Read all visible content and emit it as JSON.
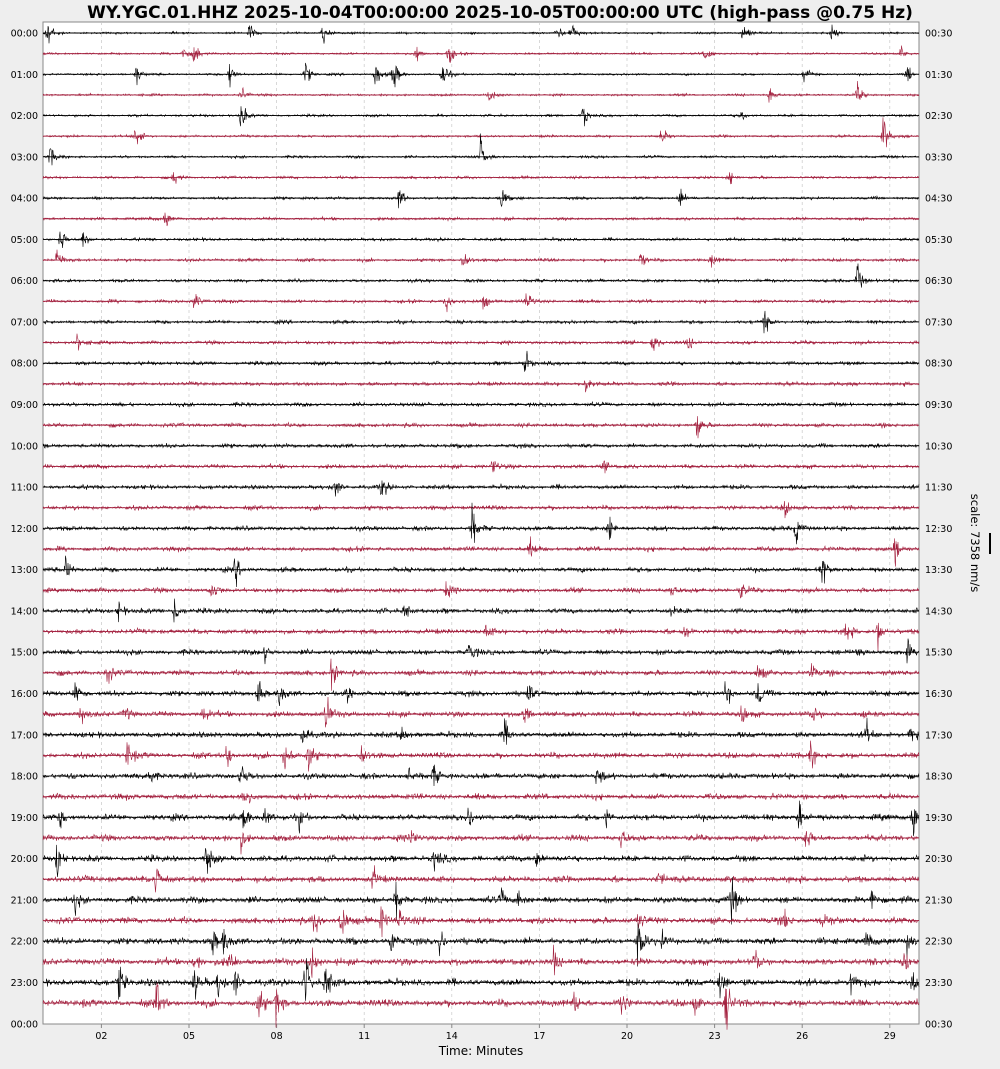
{
  "chart_data": {
    "type": "line",
    "title": "WY.YGC.01.HHZ 2025-10-04T00:00:00 2025-10-05T00:00:00 UTC (high-pass @0.75 Hz)",
    "xlabel": "Time: Minutes",
    "xlim": [
      0,
      30
    ],
    "x_ticks": [
      "02",
      "05",
      "08",
      "11",
      "14",
      "17",
      "20",
      "23",
      "26",
      "29"
    ],
    "x_tick_values": [
      2,
      5,
      8,
      11,
      14,
      17,
      20,
      23,
      26,
      29
    ],
    "left_labels": [
      "00:00",
      "01:00",
      "02:00",
      "03:00",
      "04:00",
      "05:00",
      "06:00",
      "07:00",
      "08:00",
      "09:00",
      "10:00",
      "11:00",
      "12:00",
      "13:00",
      "14:00",
      "15:00",
      "16:00",
      "17:00",
      "18:00",
      "19:00",
      "20:00",
      "21:00",
      "22:00",
      "23:00",
      "00:00"
    ],
    "right_labels": [
      "00:30",
      "01:30",
      "02:30",
      "03:30",
      "04:30",
      "05:30",
      "06:30",
      "07:30",
      "08:30",
      "09:30",
      "10:30",
      "11:30",
      "12:30",
      "13:30",
      "14:30",
      "15:30",
      "16:30",
      "17:30",
      "18:30",
      "19:30",
      "20:30",
      "21:30",
      "22:30",
      "23:30",
      "00:30"
    ],
    "scale_label": "scale: 7358 nm/s",
    "colors": {
      "even_rows": "#000000",
      "odd_rows": "#a3213f",
      "grid": "#c8c8c8"
    },
    "rows_events_minutes": [
      [
        [
          0.15,
          1.0
        ],
        [
          7.1,
          0.5
        ],
        [
          9.6,
          0.6
        ],
        [
          17.6,
          0.5
        ],
        [
          18.1,
          0.6
        ],
        [
          24,
          0.6
        ],
        [
          27,
          0.4
        ]
      ],
      [
        [
          4.8,
          0.4
        ],
        [
          5.2,
          0.6
        ],
        [
          12.8,
          0.4
        ],
        [
          13.9,
          0.6
        ],
        [
          22.7,
          0.5
        ],
        [
          29.4,
          0.4
        ]
      ],
      [
        [
          3.2,
          0.5
        ],
        [
          6.4,
          0.6
        ],
        [
          9,
          0.6
        ],
        [
          11.4,
          0.7
        ],
        [
          12,
          0.9
        ],
        [
          13.7,
          0.8
        ],
        [
          26.1,
          0.5
        ],
        [
          29.6,
          0.5
        ]
      ],
      [
        [
          6.8,
          0.4
        ],
        [
          15.3,
          0.4
        ],
        [
          24.9,
          0.5
        ],
        [
          27.9,
          0.5
        ]
      ],
      [
        [
          6.8,
          0.7
        ],
        [
          18.5,
          0.6
        ],
        [
          23.9,
          0.3
        ]
      ],
      [
        [
          3.2,
          0.7
        ],
        [
          21.2,
          0.4
        ],
        [
          28.8,
          0.9
        ]
      ],
      [
        [
          0.25,
          0.5
        ],
        [
          15,
          0.9
        ]
      ],
      [
        [
          4.5,
          0.4
        ],
        [
          23.5,
          0.4
        ]
      ],
      [
        [
          12.2,
          0.5
        ],
        [
          15.7,
          0.5
        ],
        [
          21.8,
          0.5
        ]
      ],
      [
        [
          4.2,
          0.5
        ]
      ],
      [
        [
          0.6,
          0.6
        ],
        [
          1.4,
          0.4
        ]
      ],
      [
        [
          0.5,
          0.6
        ],
        [
          14.4,
          0.6
        ],
        [
          20.5,
          0.4
        ],
        [
          22.9,
          0.4
        ]
      ],
      [
        [
          27.9,
          0.8
        ]
      ],
      [
        [
          5.2,
          0.5
        ],
        [
          13.8,
          0.5
        ],
        [
          15.1,
          0.4
        ],
        [
          16.6,
          0.6
        ]
      ],
      [
        [
          24.7,
          0.6
        ]
      ],
      [
        [
          1.2,
          0.4
        ],
        [
          20.9,
          0.6
        ],
        [
          22.1,
          0.3
        ]
      ],
      [
        [
          16.5,
          0.7
        ]
      ],
      [
        [
          18.6,
          0.6
        ]
      ],
      [],
      [
        [
          22.4,
          0.7
        ]
      ],
      [],
      [
        [
          15.4,
          0.5
        ],
        [
          19.2,
          0.3
        ]
      ],
      [
        [
          10,
          0.5
        ],
        [
          11.6,
          0.6
        ]
      ],
      [
        [
          25.4,
          0.5
        ]
      ],
      [
        [
          14.7,
          1.0
        ],
        [
          19.4,
          0.6
        ],
        [
          25.8,
          0.7
        ]
      ],
      [
        [
          16.7,
          0.4
        ],
        [
          29.2,
          0.7
        ]
      ],
      [
        [
          0.8,
          0.6
        ],
        [
          6.6,
          0.6
        ],
        [
          26.7,
          0.7
        ]
      ],
      [
        [
          5.8,
          0.5
        ],
        [
          13.8,
          0.4
        ],
        [
          21.5,
          0.4
        ],
        [
          23.9,
          0.4
        ]
      ],
      [
        [
          2.6,
          0.5
        ],
        [
          4.5,
          0.7
        ],
        [
          12.4,
          0.4
        ],
        [
          21.5,
          0.3
        ]
      ],
      [
        [
          15.2,
          0.4
        ],
        [
          22,
          0.5
        ],
        [
          27.5,
          0.6
        ],
        [
          28.6,
          0.7
        ]
      ],
      [
        [
          7.6,
          0.4
        ],
        [
          14.6,
          0.6
        ],
        [
          27.9,
          0.4
        ],
        [
          29.6,
          0.5
        ]
      ],
      [
        [
          2.2,
          0.6
        ],
        [
          9.9,
          0.7
        ],
        [
          24.5,
          0.5
        ],
        [
          26.3,
          0.5
        ]
      ],
      [
        [
          1.1,
          0.6
        ],
        [
          7.4,
          0.6
        ],
        [
          8.1,
          0.6
        ],
        [
          10.4,
          0.5
        ],
        [
          16.6,
          0.6
        ],
        [
          23.4,
          0.6
        ],
        [
          24.5,
          0.7
        ]
      ],
      [
        [
          1.3,
          0.5
        ],
        [
          2.8,
          0.5
        ],
        [
          5.5,
          0.4
        ],
        [
          9.7,
          0.9
        ],
        [
          16.5,
          0.5
        ],
        [
          23.9,
          0.6
        ],
        [
          26.4,
          0.4
        ],
        [
          28.1,
          0.3
        ]
      ],
      [
        [
          8.9,
          0.5
        ],
        [
          12.3,
          0.4
        ],
        [
          15.8,
          0.6
        ],
        [
          28.2,
          0.6
        ],
        [
          29.7,
          0.5
        ]
      ],
      [
        [
          2.9,
          0.7
        ],
        [
          6.3,
          0.6
        ],
        [
          8.3,
          0.9
        ],
        [
          9.1,
          0.7
        ],
        [
          10.9,
          0.6
        ],
        [
          26.3,
          0.7
        ]
      ],
      [
        [
          3.6,
          0.7
        ],
        [
          6.8,
          0.6
        ],
        [
          12.5,
          0.5
        ],
        [
          13.4,
          0.5
        ],
        [
          19,
          0.4
        ]
      ],
      [
        [
          6.9,
          0.6
        ]
      ],
      [
        [
          0.6,
          0.4
        ],
        [
          6.9,
          0.6
        ],
        [
          7.6,
          0.5
        ],
        [
          8.8,
          0.5
        ],
        [
          14.6,
          0.5
        ],
        [
          19.3,
          0.4
        ],
        [
          25.9,
          0.7
        ],
        [
          29.8,
          1.0
        ]
      ],
      [
        [
          6.8,
          0.5
        ],
        [
          12.6,
          0.6
        ],
        [
          19.8,
          0.5
        ],
        [
          26.1,
          0.6
        ]
      ],
      [
        [
          0.5,
          0.8
        ],
        [
          5.6,
          0.8
        ],
        [
          13.4,
          0.6
        ],
        [
          16.9,
          0.5
        ]
      ],
      [
        [
          3.9,
          0.9
        ],
        [
          11.3,
          0.5
        ],
        [
          21.1,
          0.4
        ]
      ],
      [
        [
          1.1,
          0.5
        ],
        [
          12.1,
          0.8
        ],
        [
          15.7,
          0.5
        ],
        [
          16.3,
          0.5
        ],
        [
          23.6,
          1.1
        ],
        [
          28.4,
          0.7
        ]
      ],
      [
        [
          9.3,
          0.7
        ],
        [
          10.2,
          1.1
        ],
        [
          11.6,
          0.7
        ],
        [
          12.2,
          0.8
        ],
        [
          20.4,
          0.7
        ],
        [
          25.4,
          0.5
        ],
        [
          26.7,
          0.6
        ]
      ],
      [
        [
          5.8,
          0.7
        ],
        [
          6.2,
          0.6
        ],
        [
          11.9,
          0.8
        ],
        [
          13.6,
          0.6
        ],
        [
          20.4,
          1.0
        ],
        [
          21.2,
          0.5
        ],
        [
          28.2,
          0.5
        ],
        [
          29.6,
          0.6
        ]
      ],
      [
        [
          5.2,
          0.6
        ],
        [
          6.4,
          0.5
        ],
        [
          9.2,
          0.8
        ],
        [
          17.5,
          0.7
        ],
        [
          24.4,
          0.5
        ],
        [
          29.5,
          0.5
        ]
      ],
      [
        [
          2.6,
          1.0
        ],
        [
          5.2,
          0.7
        ],
        [
          6,
          0.6
        ],
        [
          6.6,
          0.6
        ],
        [
          9,
          1.3
        ],
        [
          9.7,
          0.8
        ],
        [
          23.2,
          0.7
        ],
        [
          27.7,
          0.8
        ],
        [
          29.8,
          0.6
        ]
      ],
      [
        [
          3.9,
          1.0
        ],
        [
          7.4,
          0.7
        ],
        [
          8,
          0.9
        ],
        [
          18.2,
          0.6
        ],
        [
          19.8,
          0.7
        ],
        [
          22.3,
          0.5
        ],
        [
          23.4,
          1.1
        ]
      ]
    ]
  }
}
